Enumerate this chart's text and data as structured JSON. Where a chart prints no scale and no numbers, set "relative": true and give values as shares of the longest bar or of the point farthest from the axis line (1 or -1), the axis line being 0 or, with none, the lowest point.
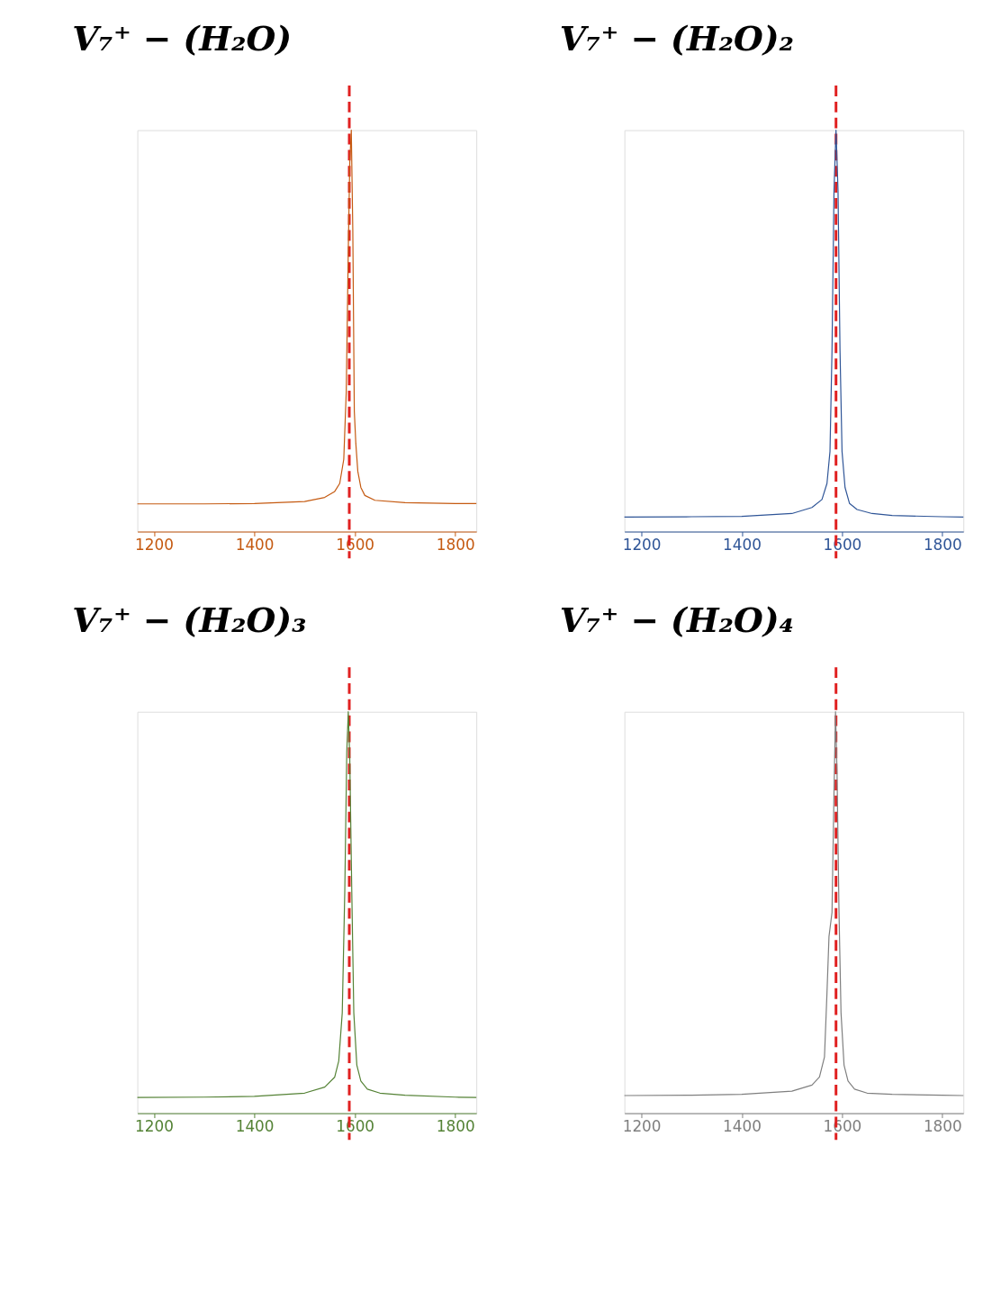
{
  "chart_data": [
    {
      "type": "line",
      "title": "V₇⁺ − (H₂O)",
      "relative": true,
      "xlim": [
        1167,
        1842
      ],
      "xticks": [
        1200,
        1400,
        1600,
        1800
      ],
      "x": [
        1167,
        1300,
        1400,
        1500,
        1540,
        1560,
        1570,
        1578,
        1583,
        1587,
        1590,
        1593,
        1596,
        1599,
        1602,
        1606,
        1612,
        1620,
        1640,
        1700,
        1800,
        1842
      ],
      "series": [
        {
          "color": "#c55a11",
          "values": [
            0.069,
            0.069,
            0.07,
            0.075,
            0.085,
            0.1,
            0.12,
            0.18,
            0.35,
            0.7,
            0.92,
            1.0,
            0.75,
            0.3,
            0.22,
            0.15,
            0.11,
            0.09,
            0.078,
            0.072,
            0.07,
            0.07
          ]
        }
      ],
      "ref_lines": [
        {
          "axis": "x",
          "value": 1589,
          "color": "#e02020",
          "line_style": "dashed"
        }
      ]
    },
    {
      "type": "line",
      "title": "V₇⁺ − (H₂O)₂",
      "relative": true,
      "xlim": [
        1166,
        1842
      ],
      "xticks": [
        1200,
        1400,
        1600,
        1800
      ],
      "x": [
        1166,
        1300,
        1400,
        1500,
        1540,
        1560,
        1570,
        1576,
        1580,
        1584,
        1588,
        1592,
        1596,
        1600,
        1606,
        1615,
        1630,
        1660,
        1700,
        1800,
        1842
      ],
      "series": [
        {
          "color": "#2f5597",
          "values": [
            0.036,
            0.037,
            0.038,
            0.045,
            0.06,
            0.08,
            0.12,
            0.2,
            0.45,
            0.85,
            1.0,
            0.85,
            0.45,
            0.2,
            0.11,
            0.07,
            0.055,
            0.045,
            0.04,
            0.037,
            0.036
          ]
        }
      ],
      "ref_lines": [
        {
          "axis": "x",
          "value": 1588,
          "color": "#e02020",
          "line_style": "dashed"
        }
      ]
    },
    {
      "type": "line",
      "title": "V₇⁺ − (H₂O)₃",
      "relative": true,
      "xlim": [
        1167,
        1842
      ],
      "xticks": [
        1200,
        1400,
        1600,
        1800
      ],
      "x": [
        1167,
        1300,
        1400,
        1500,
        1540,
        1560,
        1568,
        1575,
        1580,
        1584,
        1587,
        1590,
        1594,
        1598,
        1604,
        1612,
        1625,
        1650,
        1700,
        1800,
        1842
      ],
      "series": [
        {
          "color": "#548235",
          "values": [
            0.039,
            0.04,
            0.042,
            0.05,
            0.065,
            0.09,
            0.13,
            0.25,
            0.55,
            0.9,
            1.0,
            0.88,
            0.55,
            0.25,
            0.12,
            0.08,
            0.06,
            0.05,
            0.045,
            0.04,
            0.039
          ]
        }
      ],
      "ref_lines": [
        {
          "axis": "x",
          "value": 1589,
          "color": "#e02020",
          "line_style": "dashed"
        }
      ]
    },
    {
      "type": "line",
      "title": "V₇⁺ − (H₂O)₄",
      "relative": true,
      "xlim": [
        1166,
        1842
      ],
      "xticks": [
        1200,
        1400,
        1600,
        1800
      ],
      "x": [
        1166,
        1300,
        1400,
        1500,
        1540,
        1555,
        1565,
        1570,
        1574,
        1576,
        1580,
        1584,
        1587,
        1590,
        1594,
        1598,
        1604,
        1612,
        1625,
        1650,
        1700,
        1800,
        1842
      ],
      "series": [
        {
          "color": "#7f7f7f",
          "values": [
            0.044,
            0.045,
            0.047,
            0.055,
            0.07,
            0.09,
            0.14,
            0.3,
            0.44,
            0.46,
            0.5,
            0.8,
            1.0,
            0.85,
            0.5,
            0.25,
            0.12,
            0.08,
            0.06,
            0.05,
            0.047,
            0.045,
            0.044
          ]
        }
      ],
      "ref_lines": [
        {
          "axis": "x",
          "value": 1588,
          "color": "#e02020",
          "line_style": "dashed"
        }
      ]
    }
  ]
}
